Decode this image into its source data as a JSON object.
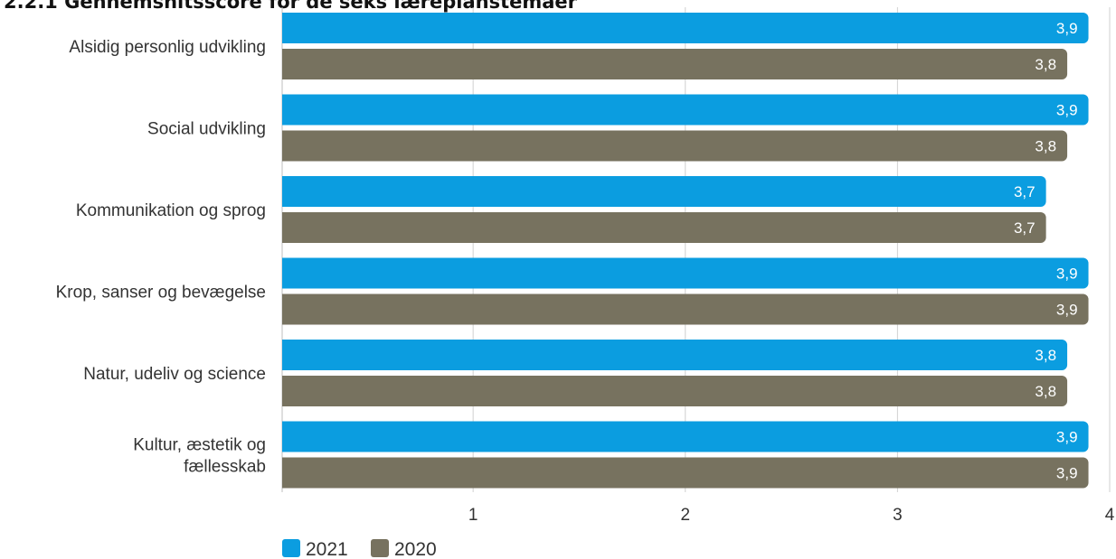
{
  "chart_data": {
    "type": "bar",
    "orientation": "horizontal",
    "title": "2.2.1 Gennemsnitsscore for de seks læreplanstemaer",
    "categories": [
      "Alsidig personlig udvikling",
      "Social udvikling",
      "Kommunikation og sprog",
      "Krop, sanser og bevægelse",
      "Natur, udeliv og science",
      "Kultur, æstetik og fællesskab"
    ],
    "category_lines": [
      [
        "Alsidig personlig udvikling"
      ],
      [
        "Social udvikling"
      ],
      [
        "Kommunikation og sprog"
      ],
      [
        "Krop, sanser og bevægelse"
      ],
      [
        "Natur, udeliv og science"
      ],
      [
        "Kultur, æstetik og",
        "fællesskab"
      ]
    ],
    "series": [
      {
        "name": "2021",
        "color": "#0b9de0",
        "values": [
          3.9,
          3.9,
          3.7,
          3.9,
          3.8,
          3.9
        ],
        "labels": [
          "3,9",
          "3,9",
          "3,7",
          "3,9",
          "3,8",
          "3,9"
        ]
      },
      {
        "name": "2020",
        "color": "#77725f",
        "values": [
          3.8,
          3.8,
          3.7,
          3.9,
          3.8,
          3.9
        ],
        "labels": [
          "3,8",
          "3,8",
          "3,7",
          "3,9",
          "3,8",
          "3,9"
        ]
      }
    ],
    "xlim": [
      0.1,
      4
    ],
    "xticks": [
      1,
      2,
      3,
      4
    ],
    "xtick_labels": [
      "1",
      "2",
      "3",
      "4"
    ],
    "grid": true,
    "legend_position": "bottom-left",
    "xlabel": "",
    "ylabel": ""
  }
}
